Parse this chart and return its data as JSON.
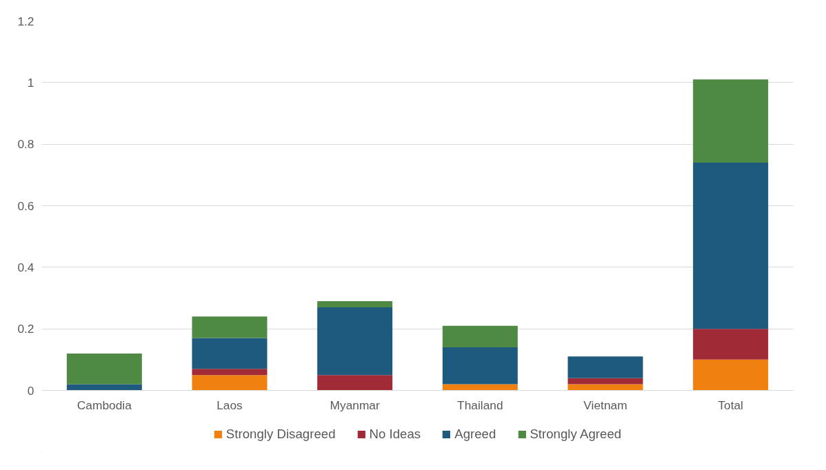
{
  "chart_data": {
    "type": "bar",
    "stacked": true,
    "categories": [
      "Cambodia",
      "Laos",
      "Myanmar",
      "Thailand",
      "Vietnam",
      "Total"
    ],
    "series": [
      {
        "name": "Strongly Disagreed",
        "color": "#f08110",
        "values": [
          0,
          0.05,
          0,
          0.02,
          0.02,
          0.1
        ]
      },
      {
        "name": "No Ideas",
        "color": "#a02b37",
        "values": [
          0,
          0.02,
          0.05,
          0,
          0.02,
          0.1
        ]
      },
      {
        "name": "Agreed",
        "color": "#1e5a7e",
        "values": [
          0.02,
          0.1,
          0.22,
          0.12,
          0.07,
          0.54
        ]
      },
      {
        "name": "Strongly Agreed",
        "color": "#4e8a43",
        "values": [
          0.1,
          0.07,
          0.02,
          0.07,
          0,
          0.27
        ]
      }
    ],
    "ylim": [
      0,
      1.2
    ],
    "yticks": [
      0,
      0.2,
      0.4,
      0.6,
      0.8,
      1,
      1.2
    ],
    "grid": "y",
    "legend": "bottom"
  }
}
